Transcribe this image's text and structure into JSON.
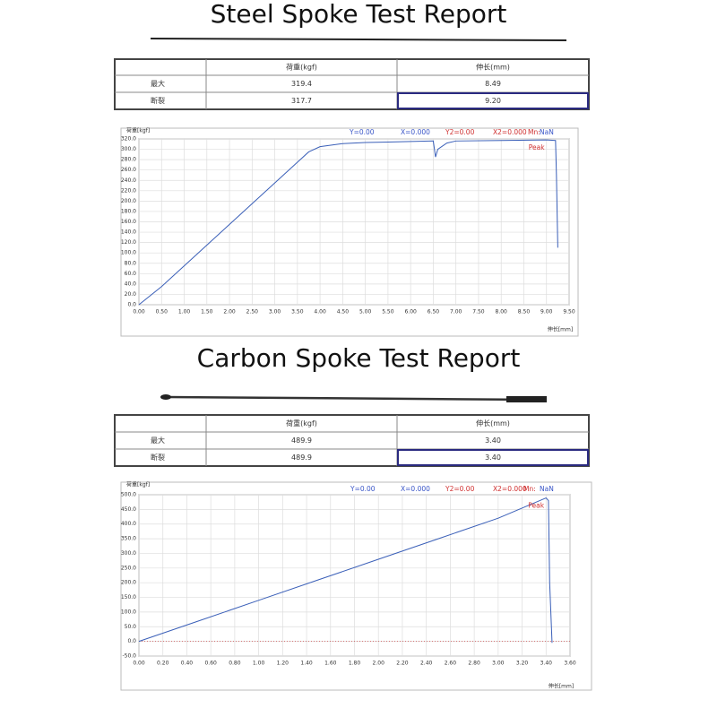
{
  "reports": [
    {
      "title": "Steel Spoke Test Report",
      "table": {
        "header": [
          "荷重(kgf)",
          "伸长(mm)"
        ],
        "rows": [
          [
            "最大",
            "319.4",
            "8.49"
          ],
          [
            "断裂",
            "317.7",
            "9.20"
          ]
        ]
      }
    },
    {
      "title": "Carbon Spoke Test Report",
      "table": {
        "header": [
          "荷重(kgf)",
          "伸长(mm)"
        ],
        "rows": [
          [
            "最大",
            "489.9",
            "3.40"
          ],
          [
            "断裂",
            "489.9",
            "3.40"
          ]
        ]
      }
    }
  ],
  "chart_data": [
    {
      "type": "line",
      "ylabel": "荷重[kgf]",
      "xlabel": "伸长[mm]",
      "peak_label": "Peak",
      "readouts": [
        {
          "text": "Y=0.00",
          "color": "#3a56c8"
        },
        {
          "text": "X=0.000",
          "color": "#3a56c8"
        },
        {
          "text": "Y2=0.00",
          "color": "#d03030"
        },
        {
          "text": "X2=0.000",
          "color": "#d03030"
        },
        {
          "text": "Mn:",
          "color": "#d03030"
        },
        {
          "text": "NaN",
          "color": "#3a56c8"
        }
      ],
      "x": [
        0,
        0.5,
        1,
        1.5,
        2,
        2.5,
        3,
        3.5,
        3.75,
        4,
        4.5,
        5,
        5.5,
        6,
        6.5,
        6.55,
        6.6,
        6.8,
        7,
        8,
        9,
        9.2,
        9.22,
        9.25
      ],
      "series": [
        {
          "color": "#3a5fb8",
          "values": [
            0,
            35,
            75,
            115,
            155,
            195,
            235,
            275,
            295,
            305,
            311,
            313,
            314,
            315,
            316,
            285,
            300,
            312,
            316,
            317,
            318,
            317,
            250,
            110
          ]
        }
      ],
      "xlim": [
        0,
        9.5
      ],
      "ylim": [
        0,
        320
      ],
      "grid": true,
      "xticks": [
        {
          "value": 0,
          "label": "0.00"
        },
        {
          "value": 0.5,
          "label": "0.50"
        },
        {
          "value": 1,
          "label": "1.00"
        },
        {
          "value": 1.5,
          "label": "1.50"
        },
        {
          "value": 2,
          "label": "2.00"
        },
        {
          "value": 2.5,
          "label": "2.50"
        },
        {
          "value": 3,
          "label": "3.00"
        },
        {
          "value": 3.5,
          "label": "3.50"
        },
        {
          "value": 4,
          "label": "4.00"
        },
        {
          "value": 4.5,
          "label": "4.50"
        },
        {
          "value": 5,
          "label": "5.00"
        },
        {
          "value": 5.5,
          "label": "5.50"
        },
        {
          "value": 6,
          "label": "6.00"
        },
        {
          "value": 6.5,
          "label": "6.50"
        },
        {
          "value": 7,
          "label": "7.00"
        },
        {
          "value": 7.5,
          "label": "7.50"
        },
        {
          "value": 8,
          "label": "8.00"
        },
        {
          "value": 8.5,
          "label": "8.50"
        },
        {
          "value": 9,
          "label": "9.00"
        },
        {
          "value": 9.5,
          "label": "9.50"
        }
      ],
      "yticks": [
        {
          "value": 0,
          "label": "0.0"
        },
        {
          "value": 20,
          "label": "20.0"
        },
        {
          "value": 40,
          "label": "40.0"
        },
        {
          "value": 60,
          "label": "60.0"
        },
        {
          "value": 80,
          "label": "80.0"
        },
        {
          "value": 100,
          "label": "100.0"
        },
        {
          "value": 120,
          "label": "120.0"
        },
        {
          "value": 140,
          "label": "140.0"
        },
        {
          "value": 160,
          "label": "160.0"
        },
        {
          "value": 180,
          "label": "180.0"
        },
        {
          "value": 200,
          "label": "200.0"
        },
        {
          "value": 220,
          "label": "220.0"
        },
        {
          "value": 240,
          "label": "240.0"
        },
        {
          "value": 260,
          "label": "260.0"
        },
        {
          "value": 280,
          "label": "280.0"
        },
        {
          "value": 300,
          "label": "300.0"
        },
        {
          "value": 320,
          "label": "320.0"
        }
      ]
    },
    {
      "type": "line",
      "ylabel": "荷重[kgf]",
      "xlabel": "伸长[mm]",
      "peak_label": "Peak",
      "readouts": [
        {
          "text": "Y=0.00",
          "color": "#3a56c8"
        },
        {
          "text": "X=0.000",
          "color": "#3a56c8"
        },
        {
          "text": "Y2=0.00",
          "color": "#d03030"
        },
        {
          "text": "X2=0.000",
          "color": "#d03030"
        },
        {
          "text": "Mn:",
          "color": "#d03030"
        },
        {
          "text": "NaN",
          "color": "#3a56c8"
        }
      ],
      "x": [
        0,
        0.5,
        1,
        1.5,
        2,
        2.5,
        3,
        3.4,
        3.42,
        3.43,
        3.45
      ],
      "series": [
        {
          "color": "#3a5fb8",
          "values": [
            0,
            70,
            140,
            210,
            280,
            350,
            420,
            489,
            480,
            200,
            -5
          ]
        }
      ],
      "xlim": [
        0,
        3.6
      ],
      "ylim": [
        -50,
        500
      ],
      "grid": true,
      "xticks": [
        {
          "value": 0,
          "label": "0.00"
        },
        {
          "value": 0.2,
          "label": "0.20"
        },
        {
          "value": 0.4,
          "label": "0.40"
        },
        {
          "value": 0.6,
          "label": "0.60"
        },
        {
          "value": 0.8,
          "label": "0.80"
        },
        {
          "value": 1,
          "label": "1.00"
        },
        {
          "value": 1.2,
          "label": "1.20"
        },
        {
          "value": 1.4,
          "label": "1.40"
        },
        {
          "value": 1.6,
          "label": "1.60"
        },
        {
          "value": 1.8,
          "label": "1.80"
        },
        {
          "value": 2,
          "label": "2.00"
        },
        {
          "value": 2.2,
          "label": "2.20"
        },
        {
          "value": 2.4,
          "label": "2.40"
        },
        {
          "value": 2.6,
          "label": "2.60"
        },
        {
          "value": 2.8,
          "label": "2.80"
        },
        {
          "value": 3,
          "label": "3.00"
        },
        {
          "value": 3.2,
          "label": "3.20"
        },
        {
          "value": 3.4,
          "label": "3.40"
        },
        {
          "value": 3.6,
          "label": "3.60"
        }
      ],
      "yticks": [
        {
          "value": -50,
          "label": "-50.0"
        },
        {
          "value": 0,
          "label": "0.0"
        },
        {
          "value": 50,
          "label": "50.0"
        },
        {
          "value": 100,
          "label": "100.0"
        },
        {
          "value": 150,
          "label": "150.0"
        },
        {
          "value": 200,
          "label": "200.0"
        },
        {
          "value": 250,
          "label": "250.0"
        },
        {
          "value": 300,
          "label": "300.0"
        },
        {
          "value": 350,
          "label": "350.0"
        },
        {
          "value": 400,
          "label": "400.0"
        },
        {
          "value": 450,
          "label": "450.0"
        },
        {
          "value": 500,
          "label": "500.0"
        }
      ]
    }
  ]
}
